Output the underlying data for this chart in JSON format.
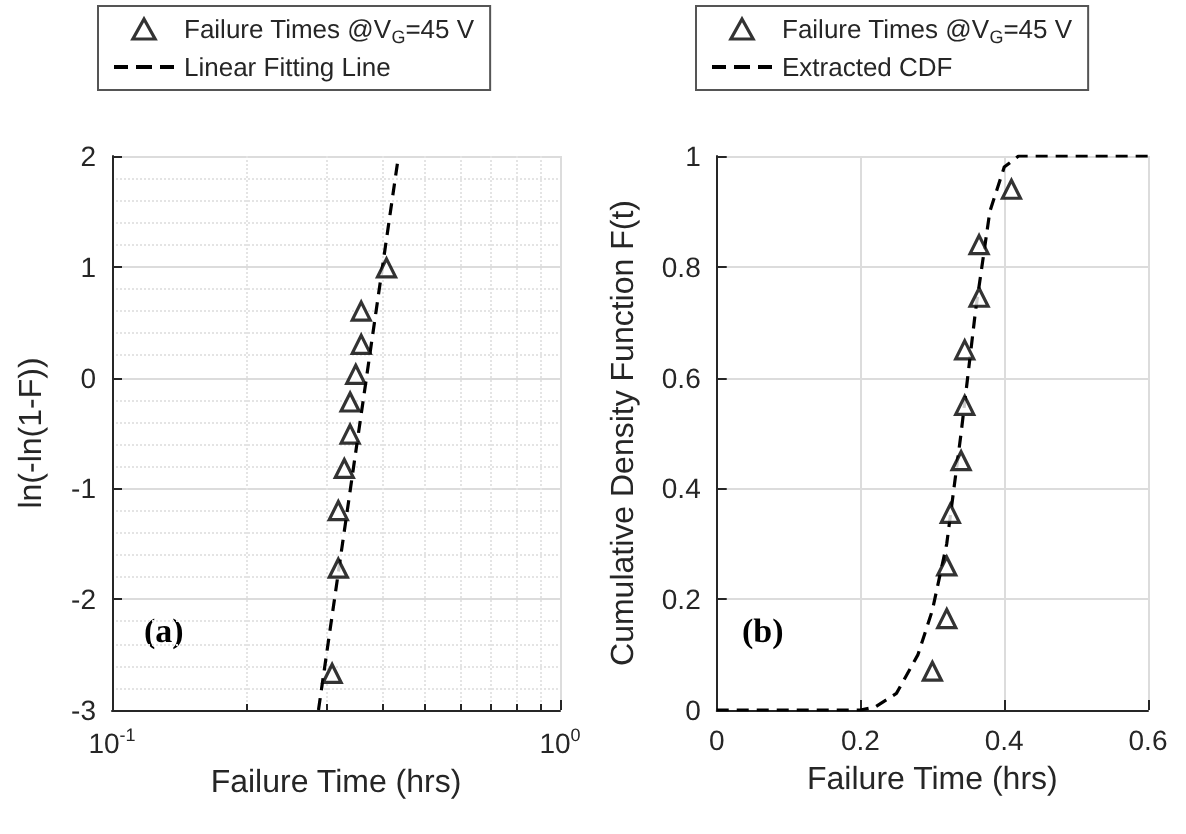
{
  "chart_data": [
    {
      "type": "scatter",
      "xlabel": "Failure Time (hrs)",
      "ylabel": "ln(-ln(1-F))",
      "log": "x",
      "xlim": [
        0.1,
        1
      ],
      "xticks": [
        {
          "value": 0.1,
          "label": "10$^{-1}$"
        },
        {
          "value": 1,
          "label": "10$^{0}$"
        }
      ],
      "ylim": [
        -3,
        2
      ],
      "yticks": [
        -3,
        -2,
        -1,
        0,
        1,
        2
      ],
      "grid": true,
      "legend": "top",
      "annotations": [
        "(a)"
      ],
      "series": [
        {
          "name": "Failure Times @V$_{G}$=45 V",
          "type": "scatter",
          "marker": "triangle",
          "color": "#000000",
          "x": [
            0.31,
            0.32,
            0.32,
            0.33,
            0.34,
            0.34,
            0.35,
            0.36,
            0.36,
            0.41
          ],
          "values": [
            -2.67,
            -1.72,
            -1.2,
            -0.82,
            -0.51,
            -0.22,
            0.03,
            0.3,
            0.6,
            0.99
          ]
        },
        {
          "name": "Linear Fitting Line",
          "type": "line",
          "marker": "none",
          "line_style": "dashed",
          "color": "#000000",
          "x": [
            0.289,
            0.436
          ],
          "values": [
            -3,
            2
          ]
        }
      ]
    },
    {
      "type": "scatter",
      "xlabel": "Failure Time (hrs)",
      "ylabel": "Cumulative Density Function F(t)",
      "xlim": [
        0,
        0.6
      ],
      "xticks": [
        0,
        0.2,
        0.4,
        0.6
      ],
      "ylim": [
        0,
        1
      ],
      "yticks": [
        0,
        0.2,
        0.4,
        0.6,
        0.8,
        1
      ],
      "grid": true,
      "legend": "top",
      "annotations": [
        "(b)"
      ],
      "series": [
        {
          "name": "Failure Times @V$_{G}$=45 V",
          "type": "scatter",
          "marker": "triangle",
          "color": "#000000",
          "x": [
            0.3,
            0.32,
            0.32,
            0.325,
            0.34,
            0.345,
            0.345,
            0.365,
            0.365,
            0.41
          ],
          "values": [
            0.07,
            0.165,
            0.26,
            0.355,
            0.45,
            0.55,
            0.65,
            0.745,
            0.84,
            0.94
          ]
        },
        {
          "name": "Extracted CDF",
          "type": "line",
          "marker": "none",
          "line_style": "dashed",
          "color": "#000000",
          "x": [
            0,
            0.2,
            0.22,
            0.25,
            0.28,
            0.3,
            0.32,
            0.34,
            0.36,
            0.38,
            0.4,
            0.42,
            0.6
          ],
          "values": [
            0,
            0,
            0.005,
            0.03,
            0.1,
            0.18,
            0.3,
            0.5,
            0.72,
            0.9,
            0.98,
            1,
            1
          ]
        }
      ]
    }
  ]
}
